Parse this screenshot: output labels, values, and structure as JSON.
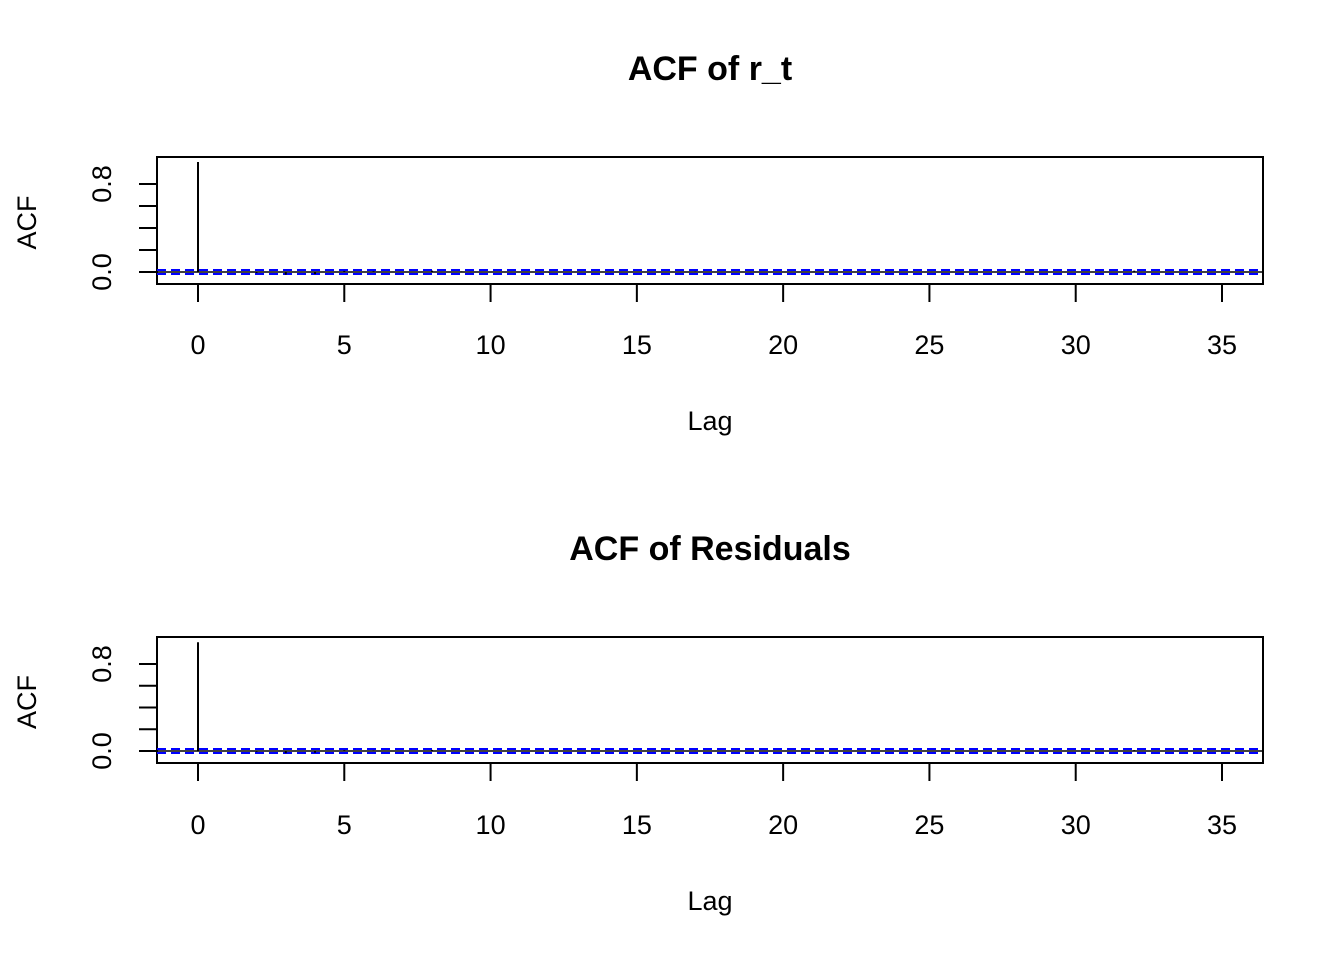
{
  "chart_data": [
    {
      "type": "bar",
      "title": "ACF of r_t",
      "xlabel": "Lag",
      "ylabel": "ACF",
      "xlim": [
        -1.4,
        36.4
      ],
      "ylim": [
        -0.05,
        1.0
      ],
      "x_ticks": [
        "0",
        "5",
        "10",
        "15",
        "20",
        "25",
        "30",
        "35"
      ],
      "y_ticks": [
        "0.0",
        "0.8"
      ],
      "lags": [
        0,
        1,
        2,
        3,
        4,
        5,
        6,
        7,
        8,
        9,
        10,
        11,
        12,
        13,
        14,
        15,
        16,
        17,
        18,
        19,
        20,
        21,
        22,
        23,
        24,
        25,
        26,
        27,
        28,
        29,
        30,
        31,
        32,
        33,
        34,
        35,
        36
      ],
      "values": [
        1.0,
        0.005,
        -0.01,
        -0.025,
        -0.02,
        0.01,
        0.008,
        -0.005,
        0.012,
        0.006,
        -0.004,
        0.003,
        -0.006,
        0.004,
        0.005,
        0.004,
        -0.003,
        0.006,
        -0.002,
        0.005,
        -0.004,
        0.003,
        0.005,
        -0.003,
        0.002,
        -0.003,
        0.004,
        0.002,
        -0.003,
        0.005,
        0.003,
        0.004,
        0.012,
        0.003,
        -0.002,
        0.004,
        0.003
      ],
      "ci": 0.018,
      "ci_color": "#0000ff",
      "grid": false
    },
    {
      "type": "bar",
      "title": "ACF of Residuals",
      "xlabel": "Lag",
      "ylabel": "ACF",
      "xlim": [
        -1.4,
        36.4
      ],
      "ylim": [
        -0.05,
        1.0
      ],
      "x_ticks": [
        "0",
        "5",
        "10",
        "15",
        "20",
        "25",
        "30",
        "35"
      ],
      "y_ticks": [
        "0.0",
        "0.8"
      ],
      "lags": [
        0,
        1,
        2,
        3,
        4,
        5,
        6,
        7,
        8,
        9,
        10,
        11,
        12,
        13,
        14,
        15,
        16,
        17,
        18,
        19,
        20,
        21,
        22,
        23,
        24,
        25,
        26,
        27,
        28,
        29,
        30,
        31,
        32,
        33,
        34,
        35,
        36
      ],
      "values": [
        1.0,
        0.004,
        -0.008,
        -0.02,
        -0.016,
        0.008,
        0.006,
        -0.004,
        0.01,
        0.005,
        -0.003,
        0.003,
        -0.005,
        0.003,
        0.004,
        0.004,
        -0.003,
        0.005,
        -0.002,
        0.004,
        -0.003,
        0.003,
        0.004,
        -0.002,
        0.002,
        -0.003,
        0.003,
        0.002,
        -0.002,
        0.004,
        0.003,
        0.003,
        0.008,
        0.003,
        -0.002,
        0.003,
        0.003
      ],
      "ci": 0.018,
      "ci_color": "#0000ff",
      "grid": false
    }
  ]
}
